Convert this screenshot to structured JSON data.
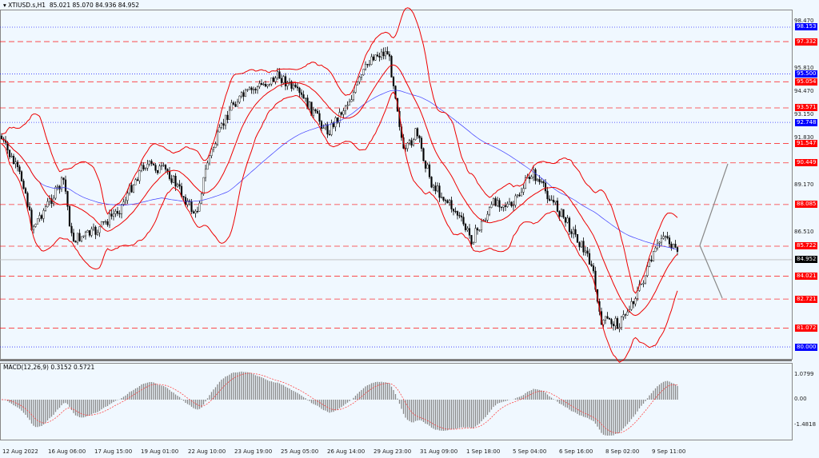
{
  "header": {
    "symbol": "XTIUSD.s,H1",
    "ohlc": "85.021 85.070 84.936 84.952"
  },
  "price_axis": {
    "ticks": [
      "98.470",
      "95.810",
      "94.470",
      "93.150",
      "91.830",
      "89.170",
      "86.510"
    ]
  },
  "levels": [
    {
      "label": "98.153",
      "price": 98.153,
      "color": "#0000ff",
      "style": "dotted"
    },
    {
      "label": "97.332",
      "price": 97.332,
      "color": "#ff0000",
      "style": "dashed"
    },
    {
      "label": "95.500",
      "price": 95.5,
      "color": "#0000ff",
      "style": "dotted"
    },
    {
      "label": "95.054",
      "price": 95.054,
      "color": "#ff0000",
      "style": "dashed"
    },
    {
      "label": "93.571",
      "price": 93.571,
      "color": "#ff0000",
      "style": "dashed"
    },
    {
      "label": "92.748",
      "price": 92.748,
      "color": "#0000ff",
      "style": "dotted"
    },
    {
      "label": "91.547",
      "price": 91.547,
      "color": "#ff0000",
      "style": "dashed"
    },
    {
      "label": "90.449",
      "price": 90.449,
      "color": "#ff0000",
      "style": "dashed"
    },
    {
      "label": "88.085",
      "price": 88.085,
      "color": "#ff0000",
      "style": "dashed"
    },
    {
      "label": "85.722",
      "price": 85.722,
      "color": "#ff0000",
      "style": "dashed"
    },
    {
      "label": "84.021",
      "price": 84.021,
      "color": "#ff0000",
      "style": "dashed"
    },
    {
      "label": "82.721",
      "price": 82.721,
      "color": "#ff0000",
      "style": "dashed"
    },
    {
      "label": "81.072",
      "price": 81.072,
      "color": "#ff0000",
      "style": "dashed"
    },
    {
      "label": "80.000",
      "price": 80.0,
      "color": "#0000ff",
      "style": "dotted"
    }
  ],
  "current_price": {
    "label": "84.952",
    "price": 84.952
  },
  "macd": {
    "label": "MACD(12,26,9) 0.3152 0.5721",
    "ticks": [
      "1.0799",
      "0.00",
      "-1.4818"
    ]
  },
  "time_axis": [
    "12 Aug 2022",
    "16 Aug 06:00",
    "17 Aug 15:00",
    "19 Aug 01:00",
    "22 Aug 10:00",
    "23 Aug 19:00",
    "25 Aug 05:00",
    "26 Aug 14:00",
    "29 Aug 23:00",
    "31 Aug 09:00",
    "1 Sep 18:00",
    "5 Sep 04:00",
    "6 Sep 16:00",
    "8 Sep 02:00",
    "9 Sep 11:00"
  ]
}
